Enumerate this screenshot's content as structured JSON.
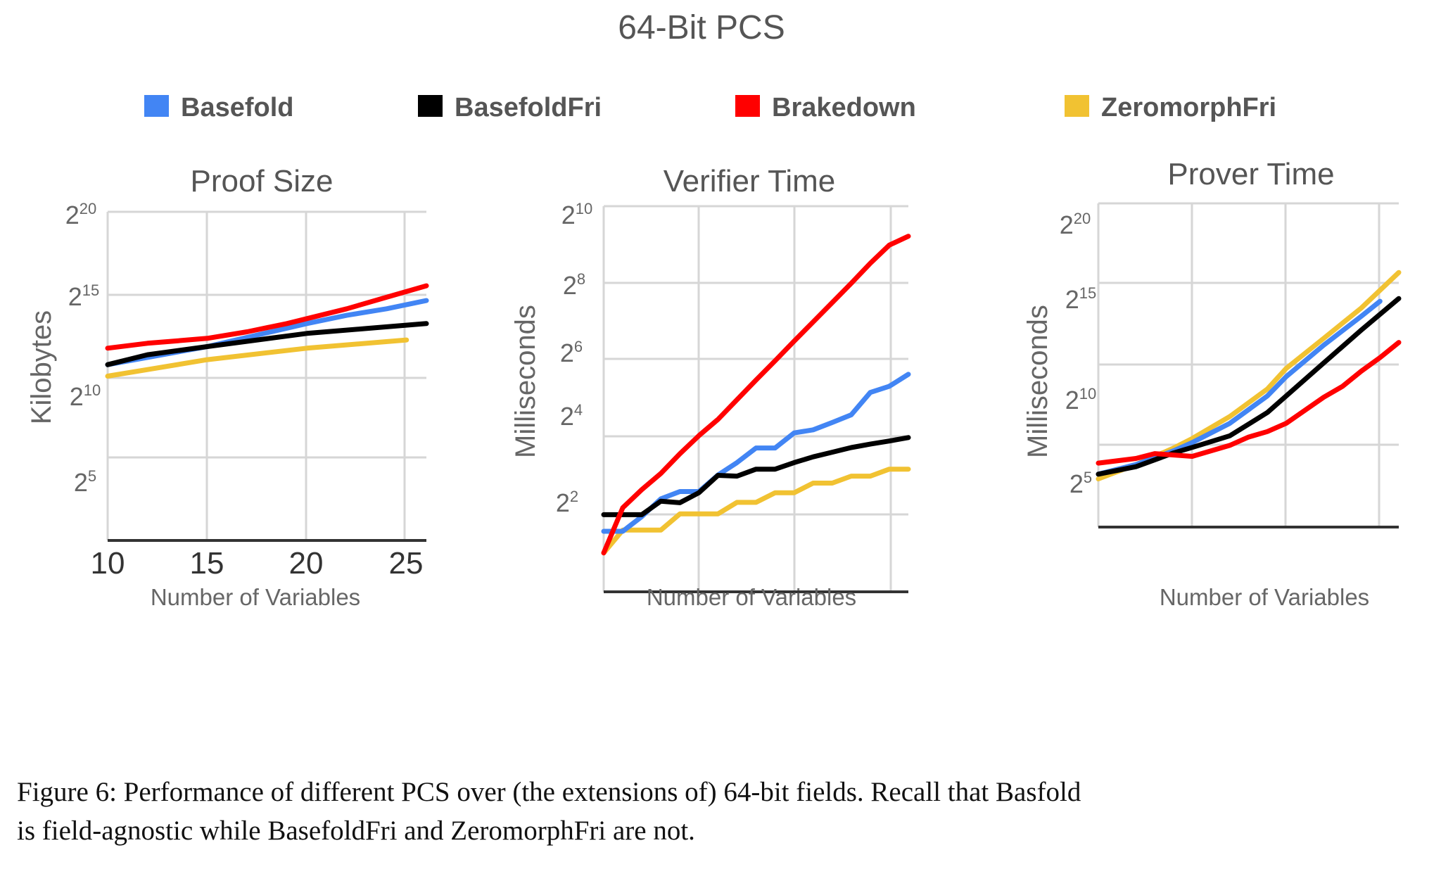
{
  "figure": {
    "title": "64-Bit PCS",
    "caption_lines": [
      "Figure 6: Performance of different PCS over (the extensions of) 64-bit fields. Recall that Basfold",
      "is field-agnostic while BasefoldFri and ZeromorphFri are not."
    ]
  },
  "legend": [
    {
      "name": "Basefold",
      "color": "#4285f4"
    },
    {
      "name": "BasefoldFri",
      "color": "#000000"
    },
    {
      "name": "Brakedown",
      "color": "#ff0000"
    },
    {
      "name": "ZeromorphFri",
      "color": "#f1c232"
    }
  ],
  "chart_data": [
    {
      "type": "line",
      "title": "Proof Size",
      "xlabel": "Number of Variables",
      "ylabel": "Kilobytes",
      "y_scale": "log2",
      "xlim": [
        10,
        26
      ],
      "ylim_log2": [
        0,
        20
      ],
      "x_ticks": [
        "10",
        "15",
        "20",
        "25"
      ],
      "y_ticks": [
        {
          "base": "2",
          "exp": "20"
        },
        {
          "base": "2",
          "exp": "15"
        },
        {
          "base": "2",
          "exp": "10"
        },
        {
          "base": "2",
          "exp": "5"
        }
      ],
      "grid": true,
      "series": [
        {
          "name": "Basefold",
          "x": [
            10,
            15,
            20,
            22,
            24,
            26
          ],
          "log2_y": [
            10.7,
            11.8,
            13.2,
            13.7,
            14.1,
            14.6
          ]
        },
        {
          "name": "BasefoldFri",
          "x": [
            10,
            12,
            15,
            20,
            23,
            26
          ],
          "log2_y": [
            10.7,
            11.3,
            11.8,
            12.6,
            12.9,
            13.2
          ]
        },
        {
          "name": "Brakedown",
          "x": [
            10,
            12,
            13,
            15,
            17,
            19,
            20,
            22,
            24,
            26
          ],
          "log2_y": [
            11.7,
            12.0,
            12.1,
            12.3,
            12.7,
            13.2,
            13.5,
            14.1,
            14.8,
            15.5
          ]
        },
        {
          "name": "ZeromorphFri",
          "x": [
            10,
            12,
            15,
            20,
            25
          ],
          "log2_y": [
            10.0,
            10.4,
            11.0,
            11.7,
            12.2
          ]
        }
      ]
    },
    {
      "type": "line",
      "title": "Verifier Time",
      "xlabel": "Number of Variables",
      "ylabel": "Milliseconds",
      "y_scale": "log2",
      "xlim": [
        10,
        26
      ],
      "ylim_log2": [
        0,
        10
      ],
      "x_ticks": [],
      "y_ticks": [
        {
          "base": "2",
          "exp": "10"
        },
        {
          "base": "2",
          "exp": "8"
        },
        {
          "base": "2",
          "exp": "6"
        },
        {
          "base": "2",
          "exp": "4"
        },
        {
          "base": "2",
          "exp": "2"
        }
      ],
      "grid": true,
      "series": [
        {
          "name": "Basefold",
          "x": [
            10,
            11,
            12,
            13,
            14,
            15,
            16,
            17,
            18,
            19,
            20,
            21,
            22,
            23,
            24,
            25,
            26
          ],
          "log2_y": [
            1.57,
            1.57,
            1.95,
            2.41,
            2.6,
            2.6,
            3.03,
            3.35,
            3.73,
            3.73,
            4.12,
            4.2,
            4.39,
            4.59,
            5.17,
            5.33,
            5.64
          ]
        },
        {
          "name": "BasefoldFri",
          "x": [
            10,
            11,
            12,
            13,
            14,
            15,
            16,
            17,
            18,
            19,
            20,
            21,
            22,
            23,
            24,
            25,
            26
          ],
          "log2_y": [
            2.0,
            2.0,
            2.0,
            2.35,
            2.31,
            2.57,
            3.02,
            3.0,
            3.18,
            3.18,
            3.35,
            3.5,
            3.62,
            3.74,
            3.83,
            3.91,
            4.0
          ]
        },
        {
          "name": "Brakedown",
          "x": [
            10,
            11,
            12,
            13,
            14,
            15,
            16,
            17,
            18,
            19,
            20,
            21,
            22,
            23,
            24,
            25,
            26
          ],
          "log2_y": [
            1.01,
            2.18,
            2.65,
            3.07,
            3.58,
            4.05,
            4.47,
            4.98,
            5.49,
            5.99,
            6.5,
            7.0,
            7.5,
            8.0,
            8.52,
            8.99,
            9.22
          ]
        },
        {
          "name": "ZeromorphFri",
          "x": [
            10,
            11,
            12,
            13,
            14,
            15,
            16,
            17,
            18,
            19,
            20,
            21,
            22,
            23,
            24,
            25,
            26
          ],
          "log2_y": [
            1.01,
            1.6,
            1.6,
            1.6,
            2.02,
            2.02,
            2.02,
            2.32,
            2.32,
            2.57,
            2.57,
            2.82,
            2.82,
            3.0,
            3.0,
            3.18,
            3.18
          ]
        }
      ]
    },
    {
      "type": "line",
      "title": "Prover Time",
      "xlabel": "Number of Variables",
      "ylabel": "Milliseconds",
      "y_scale": "log2",
      "xlim": [
        10,
        26
      ],
      "ylim_log2": [
        0,
        20
      ],
      "x_ticks": [],
      "y_ticks": [
        {
          "base": "2",
          "exp": "20"
        },
        {
          "base": "2",
          "exp": "15"
        },
        {
          "base": "2",
          "exp": "10"
        },
        {
          "base": "2",
          "exp": "5"
        }
      ],
      "grid": true,
      "series": [
        {
          "name": "Basefold",
          "x": [
            10,
            12,
            14,
            15,
            17,
            19,
            20,
            22,
            24,
            25
          ],
          "log2_y": [
            3.27,
            3.86,
            4.71,
            5.22,
            6.41,
            8.1,
            9.29,
            11.24,
            13.02,
            13.95
          ]
        },
        {
          "name": "BasefoldFri",
          "x": [
            10,
            12,
            14,
            15,
            17,
            19,
            20,
            22,
            24,
            26
          ],
          "log2_y": [
            3.27,
            3.73,
            4.58,
            4.92,
            5.64,
            7.08,
            8.1,
            10.14,
            12.17,
            14.12
          ]
        },
        {
          "name": "Brakedown",
          "x": [
            10,
            12,
            13,
            15,
            17,
            18,
            19,
            20,
            22,
            23,
            24,
            25,
            26
          ],
          "log2_y": [
            3.95,
            4.24,
            4.54,
            4.37,
            5.05,
            5.56,
            5.9,
            6.41,
            8.02,
            8.69,
            9.63,
            10.47,
            11.41
          ]
        },
        {
          "name": "ZeromorphFri",
          "x": [
            10,
            12,
            14,
            15,
            17,
            19,
            20,
            22,
            24,
            26
          ],
          "log2_y": [
            2.98,
            3.86,
            4.88,
            5.47,
            6.83,
            8.53,
            9.8,
            11.66,
            13.53,
            15.73
          ]
        }
      ]
    }
  ]
}
